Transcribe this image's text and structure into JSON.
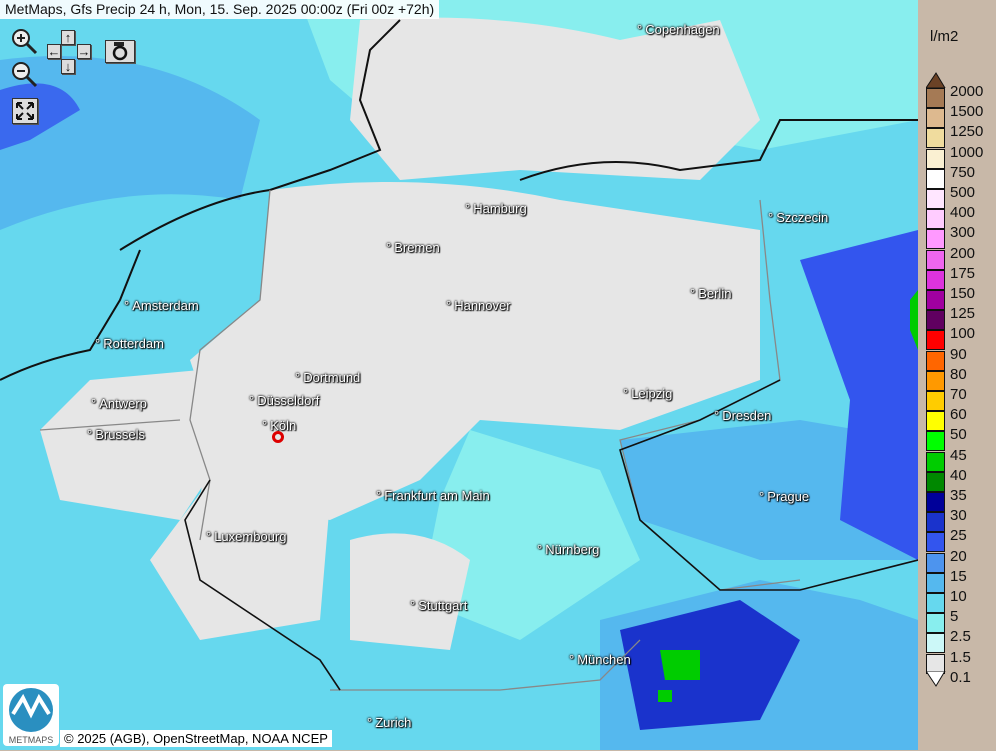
{
  "title": "MetMaps, Gfs Precip 24 h, Mon, 15. Sep. 2025 00:00z (Fri 00z +72h)",
  "controls": {
    "zoom_in": "zoom-in-icon",
    "zoom_out": "zoom-out-icon",
    "pan_up": "↑",
    "pan_down": "↓",
    "pan_left": "←",
    "pan_right": "→",
    "screenshot": "camera-icon",
    "fullscreen": "expand-icon"
  },
  "cities": [
    {
      "name": "Copenhagen"
    },
    {
      "name": "Hamburg"
    },
    {
      "name": "Szczecin"
    },
    {
      "name": "Bremen"
    },
    {
      "name": "Berlin"
    },
    {
      "name": "Amsterdam"
    },
    {
      "name": "Hannover"
    },
    {
      "name": "Rotterdam"
    },
    {
      "name": "Dortmund"
    },
    {
      "name": "Leipzig"
    },
    {
      "name": "Antwerp"
    },
    {
      "name": "Düsseldorf"
    },
    {
      "name": "Dresden"
    },
    {
      "name": "Brussels"
    },
    {
      "name": "Köln"
    },
    {
      "name": "Prague"
    },
    {
      "name": "Frankfurt am Main"
    },
    {
      "name": "Luxembourg"
    },
    {
      "name": "Nürnberg"
    },
    {
      "name": "Stuttgart"
    },
    {
      "name": "München"
    },
    {
      "name": "Zurich"
    }
  ],
  "copyright": "© 2025 (AGB), OpenStreetMap, NOAA NCEP",
  "logo_text": "METMAPS",
  "legend": {
    "unit": "l/m2",
    "labels": [
      "2000",
      "1500",
      "1250",
      "1000",
      "750",
      "500",
      "400",
      "300",
      "200",
      "175",
      "150",
      "125",
      "100",
      "90",
      "80",
      "70",
      "60",
      "50",
      "45",
      "40",
      "35",
      "30",
      "25",
      "20",
      "15",
      "10",
      "5",
      "2.5",
      "1.5",
      "0.1"
    ],
    "colors": [
      "#a57a55",
      "#ddb98f",
      "#f0dc9e",
      "#faf0d2",
      "#ffffff",
      "#ffe6ff",
      "#ffccff",
      "#ff99ff",
      "#ee66ee",
      "#dd33dd",
      "#a000a0",
      "#600060",
      "#ff0000",
      "#ff6600",
      "#ff9900",
      "#ffcc00",
      "#ffff00",
      "#00ff00",
      "#00cc00",
      "#008800",
      "#000099",
      "#1a33cc",
      "#3355ee",
      "#4d94ee",
      "#55b8ee",
      "#66d8ee",
      "#88eeee",
      "#ccf8f8",
      "#e6e6e6"
    ],
    "top_arrow_color": "#6b4226",
    "bottom_arrow_color": "#ffffff"
  }
}
